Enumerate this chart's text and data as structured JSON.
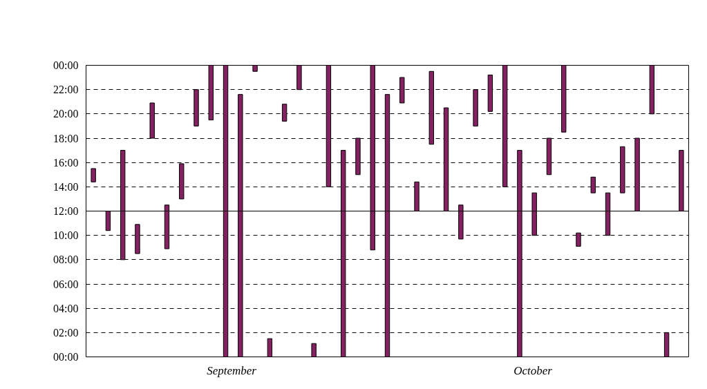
{
  "chart_data": {
    "type": "bar",
    "categories": [
      null,
      null,
      null,
      null,
      null,
      null,
      null,
      null,
      null,
      null,
      null,
      null,
      null,
      null,
      null,
      null,
      null,
      null,
      null,
      null,
      null,
      null,
      null,
      null,
      null,
      null,
      null,
      null,
      null,
      null,
      null,
      null,
      null,
      null,
      null,
      null,
      null,
      null,
      null,
      null,
      null
    ],
    "base": [
      14.4,
      10.4,
      8,
      8.5,
      18,
      8.9,
      13,
      19,
      19.5,
      0,
      0,
      23.5,
      0,
      19.4,
      22,
      0,
      14,
      0,
      15,
      8.8,
      0,
      20.9,
      12,
      17.5,
      12,
      9.7,
      19,
      20.2,
      14,
      0,
      10,
      15,
      18.5,
      9.1,
      13.5,
      10,
      13.5,
      12,
      20,
      0,
      12
    ],
    "values": [
      1.1,
      1.6,
      9,
      2.4,
      2.9,
      3.6,
      2.9,
      3,
      4.5,
      24,
      21.6,
      0.5,
      1.5,
      1.4,
      2,
      1.1,
      10,
      17,
      3,
      15.2,
      21.6,
      2.1,
      2.4,
      6,
      8.5,
      2.8,
      3,
      3,
      10,
      17,
      3.5,
      3,
      5.5,
      1.1,
      1.3,
      3.5,
      3.8,
      6,
      4,
      2,
      5
    ],
    "color": "#832161",
    "ylim": [
      0,
      24
    ],
    "yticks": [
      {
        "value": 0,
        "label": "00:00"
      },
      {
        "value": 2,
        "label": "02:00"
      },
      {
        "value": 4,
        "label": "04:00"
      },
      {
        "value": 6,
        "label": "06:00"
      },
      {
        "value": 8,
        "label": "08:00"
      },
      {
        "value": 10,
        "label": "10:00"
      },
      {
        "value": 12,
        "label": "12:00"
      },
      {
        "value": 14,
        "label": "14:00"
      },
      {
        "value": 16,
        "label": "16:00"
      },
      {
        "value": 18,
        "label": "18:00"
      },
      {
        "value": 20,
        "label": "20:00"
      },
      {
        "value": 22,
        "label": "22:00"
      },
      {
        "value": 24,
        "label": "00:00"
      }
    ],
    "grid": "y",
    "ref_lines": [
      {
        "axis": "y",
        "value": 12,
        "line_style": "solid"
      }
    ],
    "annotations": [
      "September",
      "October"
    ]
  }
}
